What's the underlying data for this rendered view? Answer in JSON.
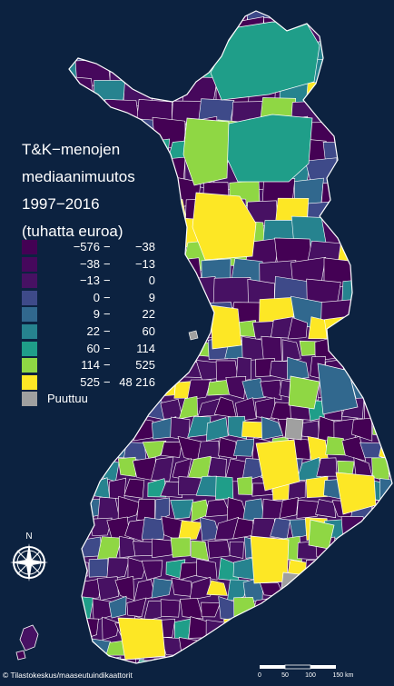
{
  "title": {
    "line1": "T&K−menojen",
    "line2": "mediaanimuutos",
    "line3": "1997−2016",
    "line4": "(tuhatta euroa)"
  },
  "legend": {
    "classes": [
      {
        "low": "−576",
        "high": "−38",
        "color": "#440154"
      },
      {
        "low": "−38",
        "high": "−13",
        "color": "#46085c"
      },
      {
        "low": "−13",
        "high": "0",
        "color": "#471163"
      },
      {
        "low": "0",
        "high": "9",
        "color": "#3e4a89"
      },
      {
        "low": "9",
        "high": "22",
        "color": "#31688e"
      },
      {
        "low": "22",
        "high": "60",
        "color": "#26838f"
      },
      {
        "low": "60",
        "high": "114",
        "color": "#1f9e89"
      },
      {
        "low": "114",
        "high": "525",
        "color": "#8fd744"
      },
      {
        "low": "525",
        "high": "48 216",
        "color": "#fde725"
      }
    ],
    "missing": {
      "label": "Puuttuu",
      "color": "#a0a0a0"
    },
    "dash": "−"
  },
  "credit": "© Tilastokeskus/maaseutuindikaattorit",
  "compass": {
    "label": "N"
  },
  "scalebar": {
    "labels": [
      "0",
      "50",
      "100",
      "150 km"
    ]
  },
  "colors": {
    "background": "#0c2240",
    "border": "#ffffff"
  }
}
